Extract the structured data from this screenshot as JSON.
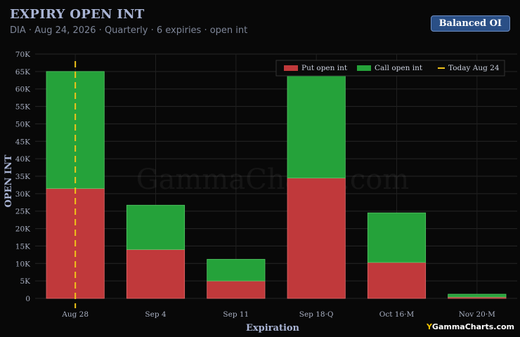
{
  "header": {
    "title": "EXPIRY OPEN INT",
    "subtitle": "DIA · Aug 24, 2026 · Quarterly · 6 expiries · open int",
    "badge": "Balanced OI"
  },
  "watermark": "GammaCharts.com",
  "brand": {
    "mark": "Y",
    "text": "GammaCharts.com"
  },
  "colors": {
    "put": "#c0393b",
    "call": "#25a23a",
    "today": "#f0c419"
  },
  "chart_data": {
    "type": "bar",
    "stacked": true,
    "categories": [
      "Aug 28",
      "Sep 4",
      "Sep 11",
      "Sep 18·Q",
      "Oct 16·M",
      "Nov 20·M"
    ],
    "series": [
      {
        "name": "Put open int",
        "values": [
          31500,
          14000,
          5000,
          34500,
          10300,
          400
        ]
      },
      {
        "name": "Call open int",
        "values": [
          33500,
          12700,
          6200,
          32500,
          14200,
          800
        ]
      }
    ],
    "reference_line": {
      "name": "Today Aug 24",
      "category": "Aug 28"
    },
    "xlabel": "Expiration",
    "ylabel": "OPEN INT",
    "ylim": [
      0,
      70000
    ],
    "yticks": [
      {
        "v": 0,
        "label": "0"
      },
      {
        "v": 5000,
        "label": "5K"
      },
      {
        "v": 10000,
        "label": "10K"
      },
      {
        "v": 15000,
        "label": "15K"
      },
      {
        "v": 20000,
        "label": "20K"
      },
      {
        "v": 25000,
        "label": "25K"
      },
      {
        "v": 30000,
        "label": "30K"
      },
      {
        "v": 35000,
        "label": "35K"
      },
      {
        "v": 40000,
        "label": "40K"
      },
      {
        "v": 45000,
        "label": "45K"
      },
      {
        "v": 50000,
        "label": "50K"
      },
      {
        "v": 55000,
        "label": "55K"
      },
      {
        "v": 60000,
        "label": "60K"
      },
      {
        "v": 65000,
        "label": "65K"
      },
      {
        "v": 70000,
        "label": "70K"
      }
    ],
    "grid": true,
    "legend": "top-right"
  }
}
